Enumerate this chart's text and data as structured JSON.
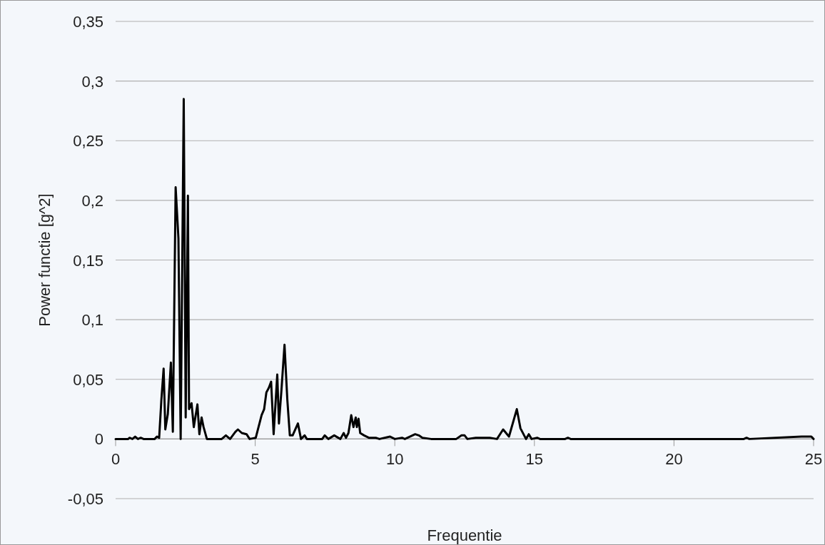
{
  "chart_data": {
    "type": "line",
    "xlabel": "Frequentie",
    "ylabel": "Power functie [g^2]",
    "xlim": [
      0,
      25
    ],
    "ylim": [
      -0.05,
      0.35
    ],
    "xticks": [
      0,
      5,
      10,
      15,
      20,
      25
    ],
    "yticks": [
      {
        "value": -0.05,
        "label": "-0,05"
      },
      {
        "value": 0,
        "label": "0"
      },
      {
        "value": 0.05,
        "label": "0,05"
      },
      {
        "value": 0.1,
        "label": "0,1"
      },
      {
        "value": 0.15,
        "label": "0,15"
      },
      {
        "value": 0.2,
        "label": "0,2"
      },
      {
        "value": 0.25,
        "label": "0,25"
      },
      {
        "value": 0.3,
        "label": "0,3"
      },
      {
        "value": 0.35,
        "label": "0,35"
      }
    ],
    "grid": "y",
    "marker": "none",
    "line_style": "solid",
    "series": [
      {
        "color": "#000000",
        "x": [
          0,
          0.45,
          0.5,
          0.6,
          0.7,
          0.8,
          0.9,
          1.0,
          1.4,
          1.48,
          1.56,
          1.64,
          1.72,
          1.78,
          1.87,
          1.98,
          2.05,
          2.15,
          2.25,
          2.33,
          2.44,
          2.51,
          2.59,
          2.63,
          2.72,
          2.8,
          2.93,
          3.0,
          3.08,
          3.15,
          3.27,
          3.8,
          3.95,
          4.1,
          4.29,
          4.38,
          4.52,
          4.69,
          4.8,
          5.02,
          5.23,
          5.32,
          5.4,
          5.49,
          5.57,
          5.66,
          5.79,
          5.85,
          5.94,
          6.05,
          6.15,
          6.24,
          6.34,
          6.53,
          6.64,
          6.77,
          6.85,
          7.4,
          7.49,
          7.62,
          7.83,
          8.05,
          8.17,
          8.25,
          8.34,
          8.44,
          8.52,
          8.6,
          8.64,
          8.7,
          8.76,
          8.9,
          9.07,
          9.32,
          9.45,
          9.83,
          10.0,
          10.26,
          10.36,
          10.73,
          10.86,
          10.99,
          11.3,
          12.2,
          12.39,
          12.5,
          12.6,
          12.9,
          13.07,
          13.4,
          13.66,
          13.88,
          14.09,
          14.37,
          14.5,
          14.7,
          14.8,
          14.9,
          15.1,
          15.2,
          16.1,
          16.2,
          16.3,
          22.5,
          22.6,
          22.7,
          24.57,
          24.92,
          25
        ],
        "values": [
          0,
          0,
          0.001,
          0,
          0.002,
          0,
          0.001,
          0,
          0,
          0.002,
          0.001,
          0.033,
          0.059,
          0.008,
          0.021,
          0.064,
          0.006,
          0.211,
          0.168,
          0,
          0.285,
          0.018,
          0.204,
          0.025,
          0.03,
          0.01,
          0.029,
          0.004,
          0.018,
          0.01,
          0,
          0,
          0.003,
          0,
          0.006,
          0.008,
          0.005,
          0.004,
          0,
          0.001,
          0.02,
          0.025,
          0.039,
          0.043,
          0.048,
          0.004,
          0.054,
          0.013,
          0.041,
          0.079,
          0.033,
          0.003,
          0.003,
          0.013,
          0,
          0.003,
          0,
          0,
          0.003,
          0,
          0.003,
          0,
          0.005,
          0.001,
          0.005,
          0.02,
          0.01,
          0.018,
          0.01,
          0.017,
          0.005,
          0.003,
          0.001,
          0.001,
          0,
          0.002,
          0,
          0.001,
          0,
          0.004,
          0.003,
          0.001,
          0,
          0,
          0.003,
          0.003,
          0,
          0.001,
          0.001,
          0.001,
          0,
          0.008,
          0.002,
          0.025,
          0.009,
          0,
          0.004,
          0,
          0.001,
          0,
          0,
          0.001,
          0,
          0,
          0.001,
          0,
          0.002,
          0.002,
          0
        ]
      }
    ]
  }
}
